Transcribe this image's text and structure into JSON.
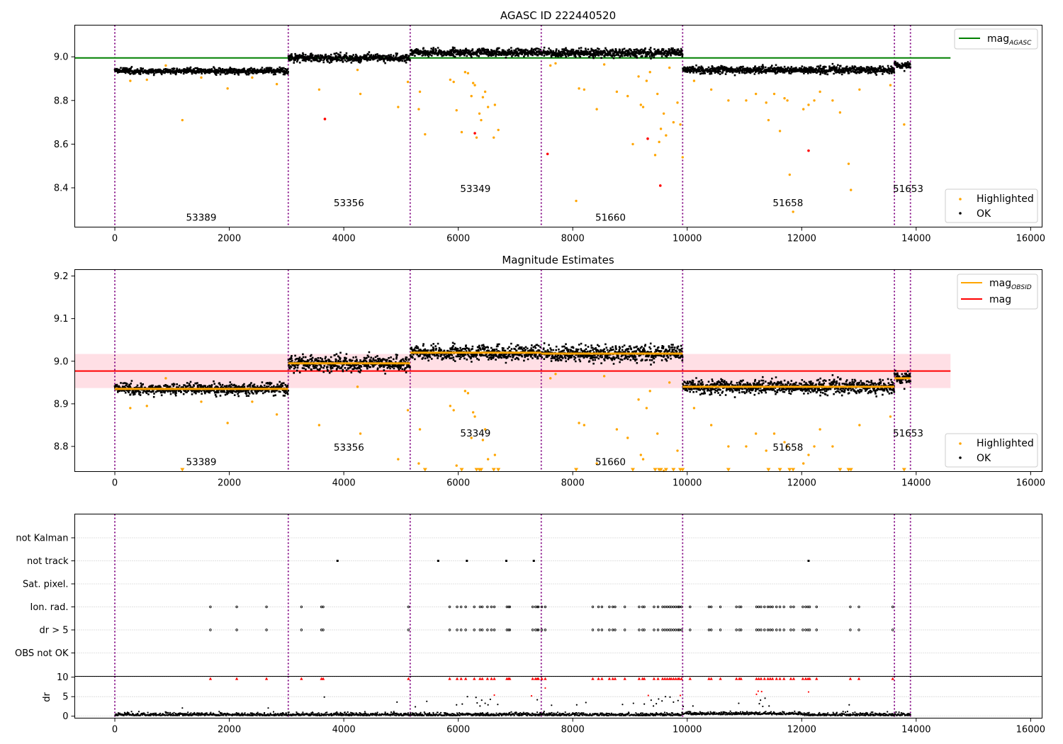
{
  "chart_data": [
    {
      "type": "scatter",
      "title": "AGASC ID 222440520",
      "xlabel": "",
      "ylabel": "",
      "xlim": [
        -700,
        16200
      ],
      "ylim": [
        8.22,
        9.145
      ],
      "xticks": [
        0,
        2000,
        4000,
        6000,
        8000,
        10000,
        12000,
        14000,
        16000
      ],
      "yticks": [
        8.4,
        8.6,
        8.8,
        9.0
      ],
      "ytick_labels": [
        "8.4",
        "8.6",
        "8.8",
        "9.0"
      ],
      "obsid_boundaries": [
        0,
        3030,
        5160,
        7450,
        9920,
        13620,
        13900
      ],
      "obsids": [
        {
          "label": "53389",
          "x": 1510,
          "y": 8.25
        },
        {
          "label": "53356",
          "x": 4090,
          "y": 8.315
        },
        {
          "label": "53349",
          "x": 6300,
          "y": 8.38
        },
        {
          "label": "51660",
          "x": 8660,
          "y": 8.25
        },
        {
          "label": "51658",
          "x": 11760,
          "y": 8.315
        },
        {
          "label": "51653",
          "x": 13860,
          "y": 8.38
        }
      ],
      "segments": [
        {
          "x0": 0,
          "x1": 3030,
          "mean": 8.935,
          "sd": 0.009
        },
        {
          "x0": 3030,
          "x1": 5160,
          "mean": 8.995,
          "sd": 0.011
        },
        {
          "x0": 5160,
          "x1": 7450,
          "mean": 9.02,
          "sd": 0.011
        },
        {
          "x0": 7450,
          "x1": 9920,
          "mean": 9.018,
          "sd": 0.012
        },
        {
          "x0": 9920,
          "x1": 13620,
          "mean": 8.94,
          "sd": 0.011
        },
        {
          "x0": 13620,
          "x1": 13900,
          "mean": 8.96,
          "sd": 0.01
        }
      ],
      "lines": [
        {
          "name": "mag_AGASC",
          "color": "#008000",
          "y": 8.995,
          "x0": -700,
          "x1": 14600
        }
      ],
      "highlighted": [
        [
          270,
          8.89
        ],
        [
          560,
          8.895
        ],
        [
          890,
          8.96
        ],
        [
          1180,
          8.71
        ],
        [
          1510,
          8.905
        ],
        [
          1970,
          8.855
        ],
        [
          2400,
          8.905
        ],
        [
          2830,
          8.875
        ],
        [
          3570,
          8.85
        ],
        [
          3670,
          8.715
        ],
        [
          4290,
          8.83
        ],
        [
          4240,
          8.94
        ],
        [
          4950,
          8.77
        ],
        [
          5120,
          8.885
        ],
        [
          5310,
          8.76
        ],
        [
          5330,
          8.84
        ],
        [
          5420,
          8.645
        ],
        [
          5860,
          8.895
        ],
        [
          5920,
          8.885
        ],
        [
          5970,
          8.755
        ],
        [
          6060,
          8.655
        ],
        [
          6120,
          8.93
        ],
        [
          6170,
          8.925
        ],
        [
          6230,
          8.82
        ],
        [
          6260,
          8.88
        ],
        [
          6290,
          8.87
        ],
        [
          6320,
          8.63
        ],
        [
          6370,
          8.74
        ],
        [
          6400,
          8.71
        ],
        [
          6430,
          8.815
        ],
        [
          6470,
          8.84
        ],
        [
          6520,
          8.77
        ],
        [
          6620,
          8.63
        ],
        [
          6640,
          8.78
        ],
        [
          6700,
          8.665
        ],
        [
          7610,
          8.96
        ],
        [
          7700,
          8.97
        ],
        [
          8060,
          8.34
        ],
        [
          8110,
          8.855
        ],
        [
          8200,
          8.85
        ],
        [
          8420,
          8.76
        ],
        [
          8550,
          8.965
        ],
        [
          8770,
          8.84
        ],
        [
          8960,
          8.82
        ],
        [
          9050,
          8.6
        ],
        [
          9150,
          8.91
        ],
        [
          9190,
          8.78
        ],
        [
          9230,
          8.77
        ],
        [
          9290,
          8.89
        ],
        [
          9350,
          8.93
        ],
        [
          9440,
          8.55
        ],
        [
          9480,
          8.83
        ],
        [
          9510,
          8.61
        ],
        [
          9540,
          8.67
        ],
        [
          9590,
          8.74
        ],
        [
          9630,
          8.64
        ],
        [
          9690,
          8.95
        ],
        [
          9760,
          8.7
        ],
        [
          9830,
          8.79
        ],
        [
          9880,
          8.69
        ],
        [
          9920,
          8.54
        ],
        [
          10120,
          8.89
        ],
        [
          10420,
          8.85
        ],
        [
          10720,
          8.8
        ],
        [
          11030,
          8.8
        ],
        [
          11200,
          8.83
        ],
        [
          11380,
          8.79
        ],
        [
          11420,
          8.71
        ],
        [
          11520,
          8.83
        ],
        [
          11620,
          8.66
        ],
        [
          11700,
          8.81
        ],
        [
          11750,
          8.8
        ],
        [
          11790,
          8.46
        ],
        [
          11850,
          8.29
        ],
        [
          12030,
          8.76
        ],
        [
          12120,
          8.78
        ],
        [
          12220,
          8.8
        ],
        [
          12320,
          8.84
        ],
        [
          12540,
          8.8
        ],
        [
          12670,
          8.745
        ],
        [
          12820,
          8.51
        ],
        [
          12860,
          8.39
        ],
        [
          13010,
          8.85
        ],
        [
          13550,
          8.87
        ],
        [
          13790,
          8.69
        ]
      ],
      "red_points": [
        [
          3670,
          8.715
        ],
        [
          6290,
          8.65
        ],
        [
          7560,
          8.555
        ],
        [
          9310,
          8.625
        ],
        [
          9530,
          8.41
        ],
        [
          12120,
          8.57
        ]
      ],
      "legends": [
        {
          "entries": [
            "mag_AGASC"
          ],
          "position": "upper right"
        },
        {
          "entries": [
            "Highlighted",
            "OK"
          ],
          "position": "lower right"
        }
      ]
    },
    {
      "type": "scatter",
      "title": "Magnitude Estimates",
      "xlabel": "",
      "ylabel": "",
      "xlim": [
        -700,
        16200
      ],
      "ylim": [
        8.741,
        9.215
      ],
      "xticks": [
        0,
        2000,
        4000,
        6000,
        8000,
        10000,
        12000,
        14000,
        16000
      ],
      "yticks": [
        8.8,
        8.9,
        9.0,
        9.1,
        9.2
      ],
      "ytick_labels": [
        "8.8",
        "8.9",
        "9.0",
        "9.1",
        "9.2"
      ],
      "obsid_boundaries": [
        0,
        3030,
        5160,
        7450,
        9920,
        13620,
        13900
      ],
      "obsids": [
        {
          "label": "53389",
          "x": 1510,
          "y": 8.756
        },
        {
          "label": "53356",
          "x": 4090,
          "y": 8.79
        },
        {
          "label": "53349",
          "x": 6300,
          "y": 8.823
        },
        {
          "label": "51660",
          "x": 8660,
          "y": 8.756
        },
        {
          "label": "51658",
          "x": 11760,
          "y": 8.79
        },
        {
          "label": "51653",
          "x": 13860,
          "y": 8.823
        }
      ],
      "segments": [
        {
          "x0": 0,
          "x1": 3030,
          "mean": 8.935,
          "sd": 0.009
        },
        {
          "x0": 3030,
          "x1": 5160,
          "mean": 8.995,
          "sd": 0.011
        },
        {
          "x0": 5160,
          "x1": 7450,
          "mean": 9.02,
          "sd": 0.011
        },
        {
          "x0": 7450,
          "x1": 9920,
          "mean": 9.018,
          "sd": 0.012
        },
        {
          "x0": 9920,
          "x1": 13620,
          "mean": 8.94,
          "sd": 0.011
        },
        {
          "x0": 13620,
          "x1": 13900,
          "mean": 8.96,
          "sd": 0.01
        }
      ],
      "band": {
        "y0": 8.937,
        "y1": 9.017,
        "x0": -700,
        "x1": 14600,
        "color": "#ffc0cb"
      },
      "lines": [
        {
          "name": "mag",
          "color": "#ff0000",
          "y": 8.977,
          "x0": -700,
          "x1": 14600
        }
      ],
      "highlighted": [
        [
          270,
          8.89
        ],
        [
          560,
          8.895
        ],
        [
          890,
          8.96
        ],
        [
          1510,
          8.905
        ],
        [
          1970,
          8.855
        ],
        [
          2400,
          8.905
        ],
        [
          2830,
          8.875
        ],
        [
          3570,
          8.85
        ],
        [
          4290,
          8.83
        ],
        [
          4240,
          8.94
        ],
        [
          4950,
          8.77
        ],
        [
          5120,
          8.885
        ],
        [
          5310,
          8.76
        ],
        [
          5330,
          8.84
        ],
        [
          5860,
          8.895
        ],
        [
          5920,
          8.885
        ],
        [
          5970,
          8.755
        ],
        [
          6120,
          8.93
        ],
        [
          6170,
          8.925
        ],
        [
          6230,
          8.82
        ],
        [
          6260,
          8.88
        ],
        [
          6290,
          8.87
        ],
        [
          6430,
          8.815
        ],
        [
          6470,
          8.84
        ],
        [
          6520,
          8.77
        ],
        [
          6640,
          8.78
        ],
        [
          7610,
          8.96
        ],
        [
          7700,
          8.97
        ],
        [
          8110,
          8.855
        ],
        [
          8200,
          8.85
        ],
        [
          8420,
          8.76
        ],
        [
          8550,
          8.965
        ],
        [
          8770,
          8.84
        ],
        [
          8960,
          8.82
        ],
        [
          9150,
          8.91
        ],
        [
          9190,
          8.78
        ],
        [
          9230,
          8.77
        ],
        [
          9290,
          8.89
        ],
        [
          9350,
          8.93
        ],
        [
          9480,
          8.83
        ],
        [
          9590,
          8.74
        ],
        [
          9690,
          8.95
        ],
        [
          9830,
          8.79
        ],
        [
          10120,
          8.89
        ],
        [
          10420,
          8.85
        ],
        [
          10720,
          8.8
        ],
        [
          11030,
          8.8
        ],
        [
          11200,
          8.83
        ],
        [
          11380,
          8.79
        ],
        [
          11520,
          8.83
        ],
        [
          11700,
          8.81
        ],
        [
          11750,
          8.8
        ],
        [
          12030,
          8.76
        ],
        [
          12120,
          8.78
        ],
        [
          12220,
          8.8
        ],
        [
          12320,
          8.84
        ],
        [
          12540,
          8.8
        ],
        [
          13010,
          8.85
        ],
        [
          13550,
          8.87
        ]
      ],
      "below_range": [
        1180,
        5420,
        6060,
        6320,
        6370,
        6400,
        6620,
        6700,
        8060,
        9050,
        9440,
        9510,
        9540,
        9630,
        9760,
        9880,
        9920,
        10720,
        11420,
        11620,
        11790,
        11850,
        12670,
        12820,
        12860,
        13790
      ],
      "mean_line_color": "#ffa500",
      "legends": [
        {
          "entries": [
            "mag_OBSID",
            "mag"
          ],
          "position": "upper right"
        },
        {
          "entries": [
            "Highlighted",
            "OK"
          ],
          "position": "lower right"
        }
      ]
    },
    {
      "type": "scatter",
      "title": "",
      "xlim": [
        -700,
        16200
      ],
      "xticks": [
        0,
        2000,
        4000,
        6000,
        8000,
        10000,
        12000,
        14000,
        16000
      ],
      "obsid_boundaries": [
        0,
        3030,
        5160,
        7450,
        9920,
        13620,
        13900
      ],
      "flag_rows": [
        "not Kalman",
        "not track",
        "Sat. pixel.",
        "Ion. rad.",
        "dr > 5",
        "OBS not OK"
      ],
      "not_track_times": [
        3890,
        5650,
        6150,
        6840,
        7320,
        12120
      ],
      "ion_rad_times": [
        1670,
        2130,
        2650,
        3260,
        3610,
        3640,
        5130,
        5850,
        5980,
        6050,
        6130,
        6280,
        6380,
        6420,
        6510,
        6580,
        6630,
        6850,
        6880,
        6900,
        7300,
        7350,
        7380,
        7400,
        7460,
        7520,
        8350,
        8450,
        8510,
        8640,
        8700,
        8740,
        8910,
        9160,
        9220,
        9250,
        9420,
        9490,
        9570,
        9610,
        9650,
        9690,
        9720,
        9760,
        9800,
        9840,
        9860,
        9900,
        10050,
        10380,
        10420,
        10580,
        10860,
        10910,
        10940,
        11210,
        11250,
        11290,
        11350,
        11410,
        11450,
        11490,
        11560,
        11620,
        11690,
        11810,
        11860,
        12020,
        12070,
        12110,
        12140,
        12260,
        12850,
        13000,
        13590
      ],
      "dr_plot": {
        "ylabel": "dr",
        "ylim": [
          -0.5,
          10.2
        ],
        "yticks": [
          0,
          5,
          10
        ],
        "cap": 10,
        "cap_color": "#ff0000",
        "high_color": "#ff0000",
        "low_color": "#000000",
        "x_max": 13900
      },
      "dr_points": [
        [
          1180,
          2.1
        ],
        [
          4930,
          3.6
        ],
        [
          5250,
          2.4
        ],
        [
          5450,
          3.8
        ],
        [
          5970,
          2.9
        ],
        [
          6070,
          3.1
        ],
        [
          6160,
          5.0
        ],
        [
          6310,
          4.8
        ],
        [
          6330,
          3.4
        ],
        [
          6380,
          2.6
        ],
        [
          6410,
          4.1
        ],
        [
          6470,
          3.3
        ],
        [
          6520,
          2.9
        ],
        [
          6560,
          4.3
        ],
        [
          6630,
          5.4
        ],
        [
          6690,
          3.0
        ],
        [
          7280,
          5.2
        ],
        [
          7380,
          4.2
        ],
        [
          7520,
          7.2
        ],
        [
          7630,
          2.8
        ],
        [
          8070,
          2.9
        ],
        [
          8230,
          3.5
        ],
        [
          8870,
          3.0
        ],
        [
          9060,
          3.3
        ],
        [
          9250,
          3.1
        ],
        [
          9320,
          5.3
        ],
        [
          9370,
          4.1
        ],
        [
          9410,
          2.6
        ],
        [
          9460,
          3.2
        ],
        [
          9500,
          4.4
        ],
        [
          9560,
          3.9
        ],
        [
          9620,
          5.0
        ],
        [
          9700,
          4.9
        ],
        [
          9760,
          3.6
        ],
        [
          9840,
          4.0
        ],
        [
          9880,
          5.3
        ],
        [
          9930,
          2.5
        ],
        [
          10100,
          2.6
        ],
        [
          10900,
          3.3
        ],
        [
          11210,
          5.6
        ],
        [
          11240,
          6.4
        ],
        [
          11260,
          3.2
        ],
        [
          11280,
          4.1
        ],
        [
          11300,
          6.3
        ],
        [
          11320,
          2.5
        ],
        [
          11360,
          4.6
        ],
        [
          11430,
          2.6
        ],
        [
          12120,
          6.2
        ],
        [
          12830,
          2.9
        ],
        [
          3660,
          4.9
        ],
        [
          2680,
          2.1
        ]
      ]
    }
  ]
}
